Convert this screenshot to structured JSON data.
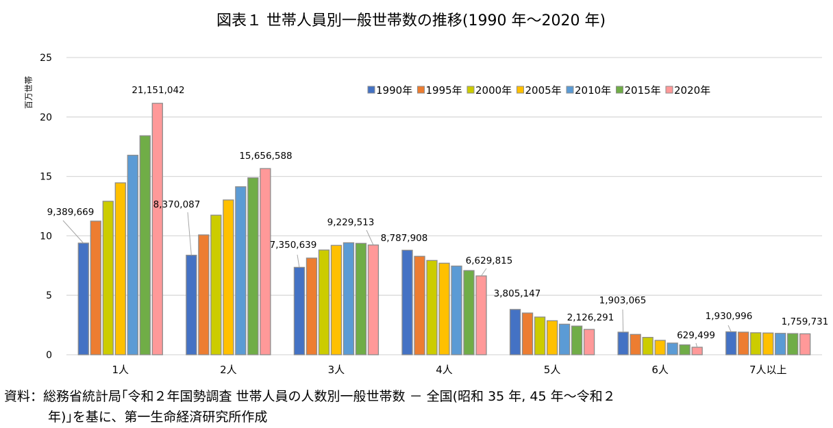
{
  "chart_data": {
    "type": "bar",
    "title": "図表１ 世帯人員別一般世帯数の推移(1990 年～2020 年)",
    "ylabel": "百万世帯",
    "xlabel": "",
    "ylim": [
      0,
      25
    ],
    "yticks": [
      "0",
      "5",
      "10",
      "15",
      "20",
      "25"
    ],
    "grid": true,
    "legend_position": "top-right",
    "categories": [
      "1人",
      "2人",
      "3人",
      "4人",
      "5人",
      "6人",
      "7人以上"
    ],
    "series": [
      {
        "name": "1990年",
        "color": "#4472C4",
        "values": [
          9.39,
          8.37,
          7.35,
          8.79,
          3.81,
          1.9,
          1.93
        ]
      },
      {
        "name": "1995年",
        "color": "#ED7D31",
        "values": [
          11.24,
          10.08,
          8.13,
          8.28,
          3.51,
          1.71,
          1.9
        ]
      },
      {
        "name": "2000年",
        "color": "#CCCC00",
        "values": [
          12.91,
          11.74,
          8.81,
          7.93,
          3.17,
          1.46,
          1.85
        ]
      },
      {
        "name": "2005年",
        "color": "#FFC000",
        "values": [
          14.46,
          13.02,
          9.2,
          7.7,
          2.86,
          1.21,
          1.83
        ]
      },
      {
        "name": "2010年",
        "color": "#5B9BD5",
        "values": [
          16.78,
          14.13,
          9.42,
          7.46,
          2.57,
          0.98,
          1.8
        ]
      },
      {
        "name": "2015年",
        "color": "#70AD47",
        "values": [
          18.42,
          14.88,
          9.37,
          7.08,
          2.41,
          0.83,
          1.78
        ]
      },
      {
        "name": "2020年",
        "color": "#FF9999",
        "values": [
          21.15,
          15.66,
          9.23,
          6.63,
          2.13,
          0.63,
          1.76
        ]
      }
    ],
    "data_labels": [
      {
        "category": "1人",
        "series": "1990年",
        "text": "9,389,669"
      },
      {
        "category": "1人",
        "series": "2020年",
        "text": "21,151,042"
      },
      {
        "category": "2人",
        "series": "1990年",
        "text": "8,370,087"
      },
      {
        "category": "2人",
        "series": "2020年",
        "text": "15,656,588"
      },
      {
        "category": "3人",
        "series": "1990年",
        "text": "7,350,639"
      },
      {
        "category": "3人",
        "series": "2020年",
        "text": "9,229,513"
      },
      {
        "category": "4人",
        "series": "1990年",
        "text": "8,787,908"
      },
      {
        "category": "4人",
        "series": "2020年",
        "text": "6,629,815"
      },
      {
        "category": "5人",
        "series": "1990年",
        "text": "3,805,147"
      },
      {
        "category": "5人",
        "series": "2020年",
        "text": "2,126,291"
      },
      {
        "category": "6人",
        "series": "1990年",
        "text": "1,903,065"
      },
      {
        "category": "6人",
        "series": "2020年",
        "text": "629,499"
      },
      {
        "category": "7人以上",
        "series": "1990年",
        "text": "1,930,996"
      },
      {
        "category": "7人以上",
        "series": "2020年",
        "text": "1,759,731"
      }
    ]
  },
  "footnote": {
    "line1": "資料：総務省統計局｢令和２年国勢調査 世帯人員の人数別一般世帯数 － 全国(昭和 35 年, 45 年～令和２",
    "line2": "年)｣を基に、第一生命経済研究所作成"
  }
}
